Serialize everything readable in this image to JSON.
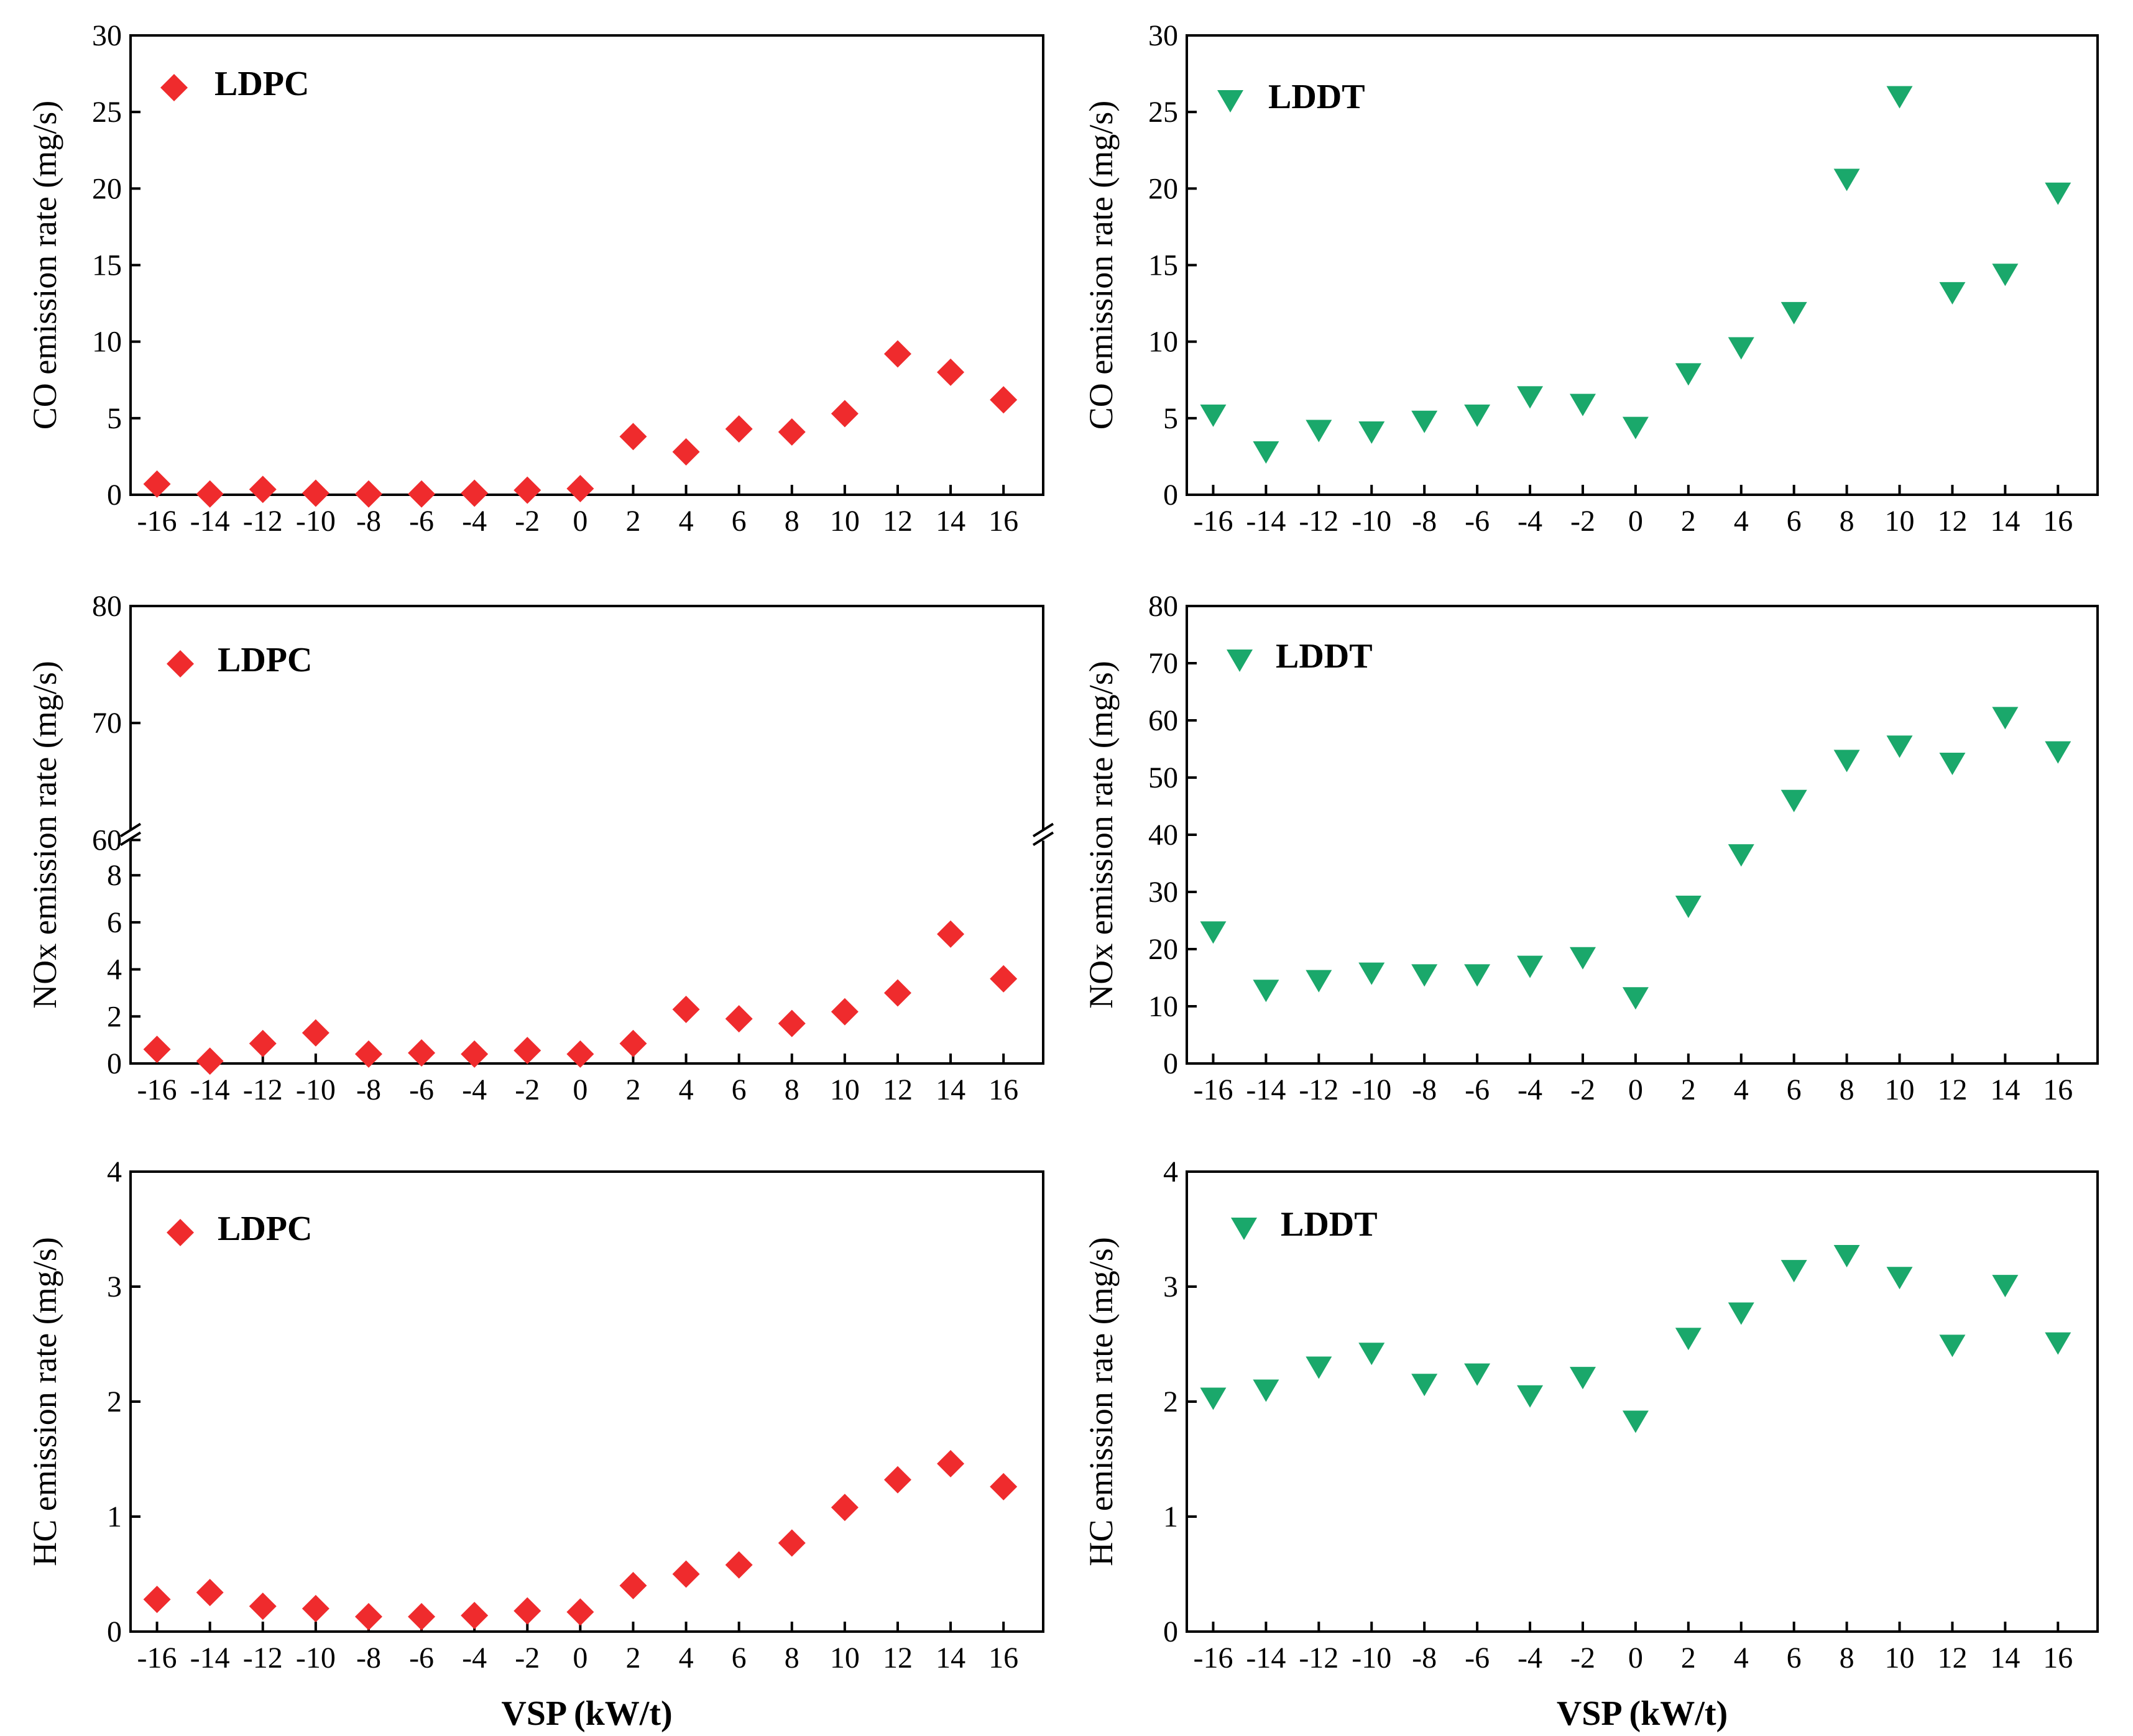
{
  "figure": {
    "shared_xlabel": "VSP (kW/t)",
    "colors": {
      "ldpc": "#ef2b2d",
      "lddt": "#1aa86b",
      "axis": "#000000"
    }
  },
  "chart_data": [
    {
      "id": "co-ldpc",
      "type": "scatter",
      "marker": "diamond",
      "series_name": "LDPC",
      "ylabel": "CO emission rate (mg/s)",
      "xlabel": "",
      "ylim": [
        0,
        30
      ],
      "yticks": [
        "0",
        "5",
        "10",
        "15",
        "20",
        "25",
        "30"
      ],
      "x": [
        -16,
        -14,
        -12,
        -10,
        -8,
        -6,
        -4,
        -2,
        0,
        2,
        4,
        6,
        8,
        10,
        12,
        14,
        16
      ],
      "xticks": [
        "-16",
        "-14",
        "-12",
        "-10",
        "-8",
        "-6",
        "-4",
        "-2",
        "0",
        "2",
        "4",
        "6",
        "8",
        "10",
        "12",
        "14",
        "16"
      ],
      "y": [
        0.7,
        0.05,
        0.35,
        0.1,
        0.05,
        0.05,
        0.1,
        0.3,
        0.4,
        3.8,
        2.8,
        4.3,
        4.1,
        5.3,
        9.2,
        8.0,
        6.2
      ]
    },
    {
      "id": "co-lddt",
      "type": "scatter",
      "marker": "triangle-down",
      "series_name": "LDDT",
      "ylabel": "CO emission rate (mg/s)",
      "xlabel": "",
      "ylim": [
        0,
        30
      ],
      "yticks": [
        "0",
        "5",
        "10",
        "15",
        "20",
        "25",
        "30"
      ],
      "x": [
        -16,
        -14,
        -12,
        -10,
        -8,
        -6,
        -4,
        -2,
        0,
        2,
        4,
        6,
        8,
        10,
        12,
        14,
        16
      ],
      "xticks": [
        "-16",
        "-14",
        "-12",
        "-10",
        "-8",
        "-6",
        "-4",
        "-2",
        "0",
        "2",
        "4",
        "6",
        "8",
        "10",
        "12",
        "14",
        "16"
      ],
      "y": [
        5.2,
        2.8,
        4.2,
        4.1,
        4.8,
        5.2,
        6.4,
        5.9,
        4.4,
        7.9,
        9.6,
        11.9,
        20.6,
        26.0,
        13.2,
        14.4,
        19.7
      ]
    },
    {
      "id": "nox-ldpc",
      "type": "scatter",
      "marker": "diamond",
      "series_name": "LDPC",
      "ylabel": "NOx emission rate (mg/s)",
      "xlabel": "",
      "axis_break": [
        9.5,
        60
      ],
      "ylim_lower": [
        0,
        9.5
      ],
      "ylim_upper": [
        60,
        80
      ],
      "yticks": [
        "0",
        "2",
        "4",
        "6",
        "8",
        "60",
        "70",
        "80"
      ],
      "x": [
        -16,
        -14,
        -12,
        -10,
        -8,
        -6,
        -4,
        -2,
        0,
        2,
        4,
        6,
        8,
        10,
        12,
        14,
        16
      ],
      "xticks": [
        "-16",
        "-14",
        "-12",
        "-10",
        "-8",
        "-6",
        "-4",
        "-2",
        "0",
        "2",
        "4",
        "6",
        "8",
        "10",
        "12",
        "14",
        "16"
      ],
      "y": [
        0.6,
        0.1,
        0.85,
        1.3,
        0.4,
        0.45,
        0.4,
        0.55,
        0.4,
        0.85,
        2.3,
        1.9,
        1.7,
        2.2,
        3.0,
        5.5,
        3.6
      ]
    },
    {
      "id": "nox-lddt",
      "type": "scatter",
      "marker": "triangle-down",
      "series_name": "LDDT",
      "ylabel": "NOx emission rate (mg/s)",
      "xlabel": "",
      "ylim": [
        0,
        80
      ],
      "yticks": [
        "0",
        "10",
        "20",
        "30",
        "40",
        "50",
        "60",
        "70",
        "80"
      ],
      "x": [
        -16,
        -14,
        -12,
        -10,
        -8,
        -6,
        -4,
        -2,
        0,
        2,
        4,
        6,
        8,
        10,
        12,
        14,
        16
      ],
      "xticks": [
        "-16",
        "-14",
        "-12",
        "-10",
        "-8",
        "-6",
        "-4",
        "-2",
        "0",
        "2",
        "4",
        "6",
        "8",
        "10",
        "12",
        "14",
        "16"
      ],
      "y": [
        23,
        12.8,
        14.5,
        15.8,
        15.5,
        15.5,
        17,
        18.5,
        11.5,
        27.5,
        36.5,
        46,
        53,
        55.5,
        52.5,
        60.5,
        54.5
      ]
    },
    {
      "id": "hc-ldpc",
      "type": "scatter",
      "marker": "diamond",
      "series_name": "LDPC",
      "ylabel": "HC emission rate (mg/s)",
      "xlabel": "VSP (kW/t)",
      "ylim": [
        0,
        4
      ],
      "yticks": [
        "0",
        "1",
        "2",
        "3",
        "4"
      ],
      "x": [
        -16,
        -14,
        -12,
        -10,
        -8,
        -6,
        -4,
        -2,
        0,
        2,
        4,
        6,
        8,
        10,
        12,
        14,
        16
      ],
      "xticks": [
        "-16",
        "-14",
        "-12",
        "-10",
        "-8",
        "-6",
        "-4",
        "-2",
        "0",
        "2",
        "4",
        "6",
        "8",
        "10",
        "12",
        "14",
        "16"
      ],
      "y": [
        0.28,
        0.34,
        0.22,
        0.2,
        0.13,
        0.13,
        0.14,
        0.18,
        0.17,
        0.4,
        0.5,
        0.58,
        0.77,
        1.08,
        1.32,
        1.46,
        1.26
      ]
    },
    {
      "id": "hc-lddt",
      "type": "scatter",
      "marker": "triangle-down",
      "series_name": "LDDT",
      "ylabel": "HC emission rate (mg/s)",
      "xlabel": "VSP (kW/t)",
      "ylim": [
        0,
        4
      ],
      "yticks": [
        "0",
        "1",
        "2",
        "3",
        "4"
      ],
      "x": [
        -16,
        -14,
        -12,
        -10,
        -8,
        -6,
        -4,
        -2,
        0,
        2,
        4,
        6,
        8,
        10,
        12,
        14,
        16
      ],
      "xticks": [
        "-16",
        "-14",
        "-12",
        "-10",
        "-8",
        "-6",
        "-4",
        "-2",
        "0",
        "2",
        "4",
        "6",
        "8",
        "10",
        "12",
        "14",
        "16"
      ],
      "y": [
        2.03,
        2.1,
        2.3,
        2.42,
        2.15,
        2.24,
        2.05,
        2.21,
        1.83,
        2.55,
        2.77,
        3.14,
        3.27,
        3.08,
        2.49,
        3.01,
        2.51
      ]
    }
  ]
}
